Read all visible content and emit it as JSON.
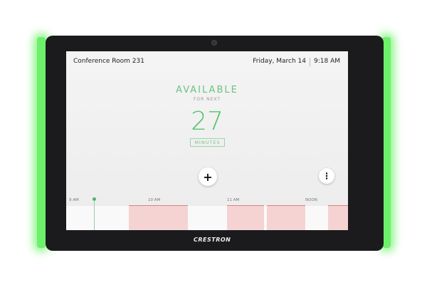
{
  "header": {
    "room": "Conference Room 231",
    "date": "Friday, March 14",
    "time": "9:18 AM"
  },
  "status": {
    "label": "AVAILABLE",
    "sub": "FOR NEXT",
    "minutes": "27",
    "unit": "MINUTES",
    "color": "#55c46f"
  },
  "actions": {
    "add": "+",
    "more": "⋮"
  },
  "timeline": {
    "hours": [
      "9 AM",
      "10 AM",
      "11 AM",
      "NOON"
    ],
    "booked_color": "#f5d3d3"
  },
  "brand": "CRESTRON",
  "led_color": "#6df06a"
}
